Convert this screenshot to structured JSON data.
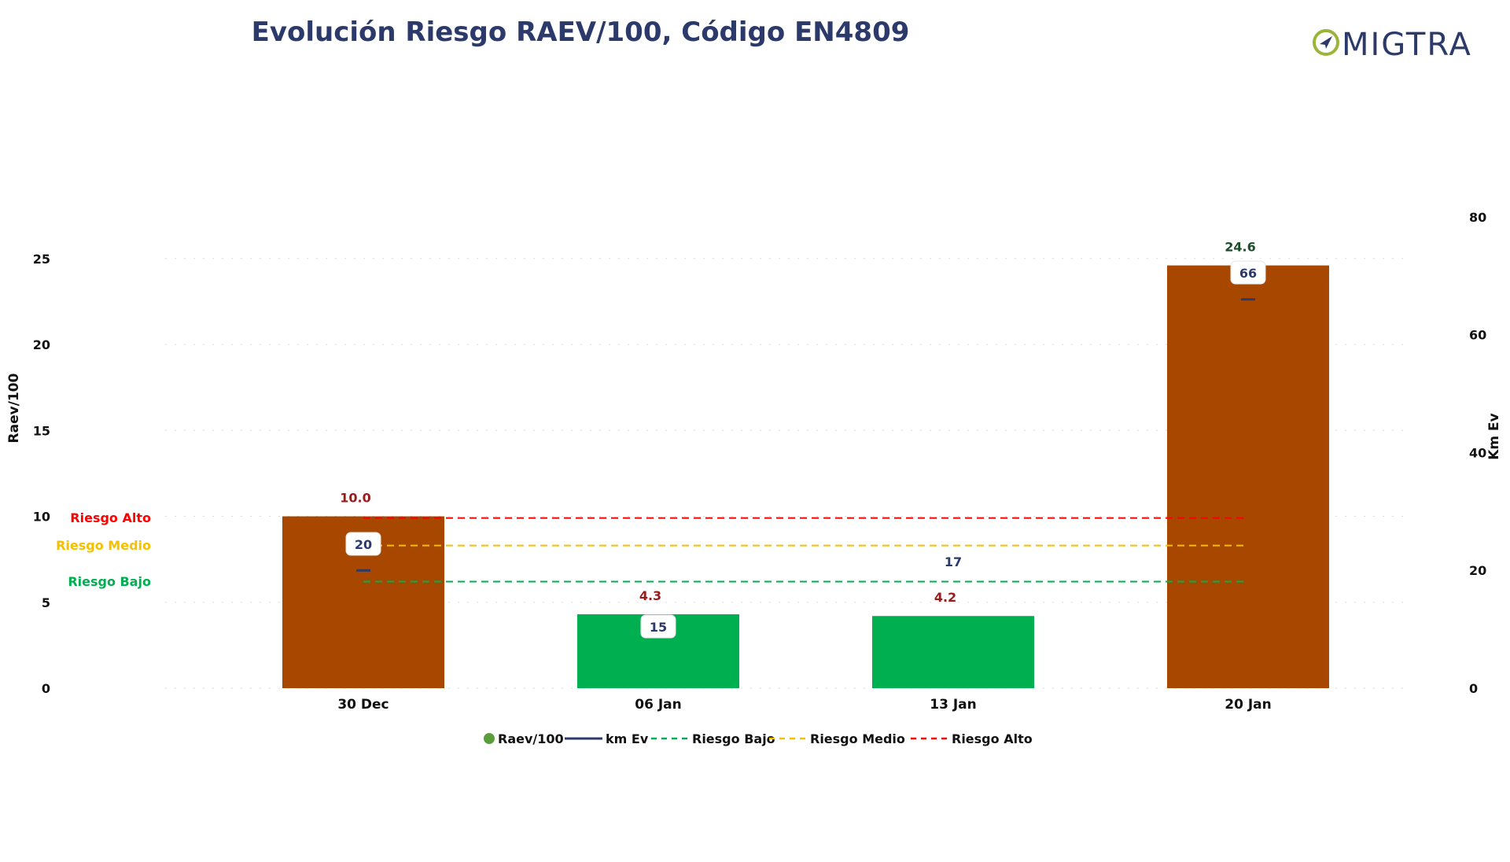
{
  "logo": {
    "text": "MIGTRA",
    "color_ring": "#9bb53a",
    "color_text": "#2b3a6b"
  },
  "chart_data": {
    "type": "bar",
    "title": "Evolución Riesgo RAEV/100, Código EN4809",
    "categories": [
      "30 Dec",
      "06 Jan",
      "13 Jan",
      "20 Jan"
    ],
    "ylabel": "Raev/100",
    "y2label": "Km Ev",
    "ylim": [
      0,
      25
    ],
    "y2lim": [
      0,
      80
    ],
    "yticks": [
      0,
      5,
      10,
      15,
      20,
      25
    ],
    "y2ticks": [
      0,
      20,
      40,
      60,
      80
    ],
    "grid": false,
    "legend_position": "bottom",
    "series": [
      {
        "name": "Raev/100",
        "kind": "bar",
        "axis": "left",
        "values": [
          10.0,
          4.3,
          4.2,
          24.6
        ],
        "labels": [
          "10.0",
          "4.3",
          "4.2",
          "24.6"
        ],
        "colors": [
          "#a84700",
          "#00b050",
          "#00b050",
          "#a84700"
        ],
        "label_colors": [
          "#9b1b1b",
          "#9b1b1b",
          "#9b1b1b",
          "#1e4d2b"
        ],
        "legend_color": "#5a9e3a"
      },
      {
        "name": "km Ev",
        "kind": "marker",
        "axis": "right",
        "values": [
          20,
          null,
          null,
          66
        ],
        "labels": [
          "20",
          "15",
          "17",
          "66"
        ],
        "color": "#2b3a6b"
      }
    ],
    "thresholds": [
      {
        "name": "Riesgo Bajo",
        "label": "Riesgo Bajo",
        "value": 6.2,
        "color": "#00b050"
      },
      {
        "name": "Riesgo Medio",
        "label": "Riesgo Medio",
        "value": 8.3,
        "color": "#f5c000"
      },
      {
        "name": "Riesgo Alto",
        "label": "Riesgo Alto",
        "value": 9.9,
        "color": "#ff0000"
      }
    ]
  }
}
